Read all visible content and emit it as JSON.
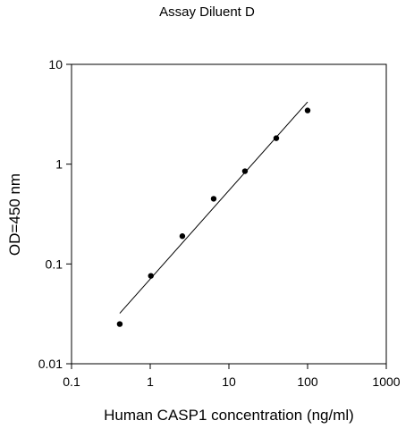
{
  "chart_data": {
    "type": "scatter",
    "title": "Assay Diluent D",
    "xlabel": "Human CASP1 concentration (ng/ml)",
    "ylabel": "OD=450 nm",
    "x_scale": "log",
    "y_scale": "log",
    "xlim": [
      0.1,
      1000
    ],
    "ylim": [
      0.01,
      10
    ],
    "x_ticks": [
      "0.1",
      "1",
      "10",
      "100",
      "1000"
    ],
    "y_ticks": [
      "0.01",
      "0.1",
      "1",
      "10"
    ],
    "grid": false,
    "legend": "none",
    "series": [
      {
        "points": [
          {
            "x": 0.41,
            "y": 0.025
          },
          {
            "x": 1.02,
            "y": 0.076
          },
          {
            "x": 2.56,
            "y": 0.19
          },
          {
            "x": 6.4,
            "y": 0.45
          },
          {
            "x": 16,
            "y": 0.85
          },
          {
            "x": 40,
            "y": 1.82
          },
          {
            "x": 100,
            "y": 3.45
          }
        ]
      }
    ],
    "fit_line": {
      "x": [
        0.41,
        100
      ],
      "y": [
        0.032,
        4.2
      ]
    },
    "colors": {
      "marker": "#000000",
      "line": "#000000",
      "axes": "#000000"
    }
  }
}
